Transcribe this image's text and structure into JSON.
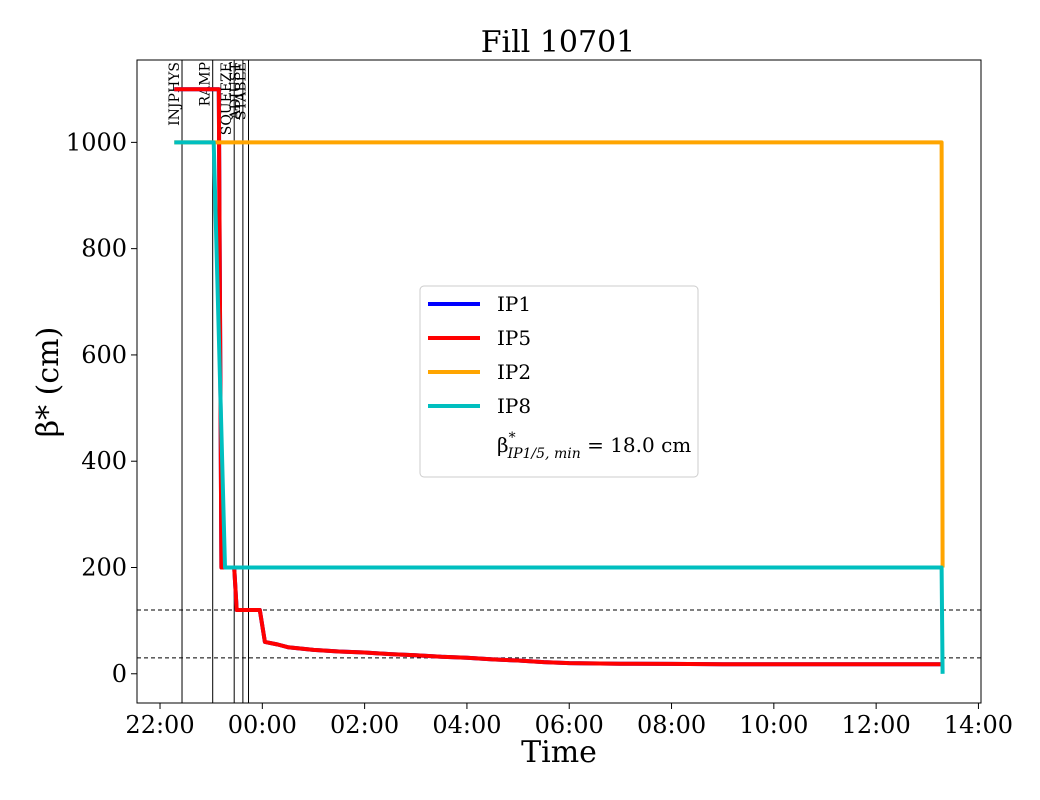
{
  "chart_data": {
    "type": "line",
    "title": "Fill 10701",
    "xlabel": "Time",
    "ylabel": "β* (cm)",
    "x_tick_labels": [
      "22:00",
      "00:00",
      "02:00",
      "04:00",
      "06:00",
      "08:00",
      "10:00",
      "12:00",
      "14:00"
    ],
    "x_ticks_hours": [
      -2,
      0,
      2,
      4,
      6,
      8,
      10,
      12,
      14
    ],
    "xlim_hours": [
      -2.45,
      14.05
    ],
    "y_ticks": [
      0,
      200,
      400,
      600,
      800,
      1000
    ],
    "ylim": [
      -55,
      1155
    ],
    "grid": false,
    "legend_position": "center",
    "legend": {
      "entries": [
        {
          "label": "IP1",
          "color": "#0000ff"
        },
        {
          "label": "IP5",
          "color": "#ff0000"
        },
        {
          "label": "IP2",
          "color": "#ffa500"
        },
        {
          "label": "IP8",
          "color": "#00bfbf"
        }
      ],
      "note_beta": "β",
      "note_sup": "*",
      "note_sub": "IP1/5, min",
      "note_value": " = 18.0 cm"
    },
    "phases": [
      {
        "name": "INJPHYS",
        "x_hours": -1.57
      },
      {
        "name": "RAMP",
        "x_hours": -0.97
      },
      {
        "name": "SQUEEZE",
        "x_hours": -0.55
      },
      {
        "name": "ADJUST",
        "x_hours": -0.38
      },
      {
        "name": "STABLE",
        "x_hours": -0.27
      }
    ],
    "reference_lines": [
      {
        "y": 120,
        "style": "dashed"
      },
      {
        "y": 30,
        "style": "dashed"
      }
    ],
    "series": [
      {
        "name": "IP1",
        "color": "#0000ff",
        "x": [
          -1.72,
          -0.85,
          -0.8,
          -0.55,
          -0.5,
          -0.05,
          0.05,
          0.3,
          0.5,
          1.0,
          1.5,
          2.0,
          2.5,
          3.0,
          3.5,
          4.0,
          4.5,
          5.0,
          5.5,
          6.0,
          7.0,
          8.0,
          9.0,
          10.0,
          11.0,
          12.0,
          13.3
        ],
        "y": [
          1100,
          1100,
          200,
          200,
          120,
          120,
          60,
          55,
          50,
          45,
          42,
          40,
          37,
          35,
          32,
          30,
          27,
          25,
          22,
          20,
          19,
          18.5,
          18,
          18,
          18,
          18,
          18
        ]
      },
      {
        "name": "IP5",
        "color": "#ff0000",
        "x": [
          -1.72,
          -0.85,
          -0.8,
          -0.55,
          -0.5,
          -0.05,
          0.05,
          0.3,
          0.5,
          1.0,
          1.5,
          2.0,
          2.5,
          3.0,
          3.5,
          4.0,
          4.5,
          5.0,
          5.5,
          6.0,
          7.0,
          8.0,
          9.0,
          10.0,
          11.0,
          12.0,
          13.3
        ],
        "y": [
          1100,
          1100,
          200,
          200,
          120,
          120,
          60,
          55,
          50,
          45,
          42,
          40,
          37,
          35,
          32,
          30,
          27,
          25,
          22,
          20,
          19,
          18.5,
          18,
          18,
          18,
          18,
          18
        ]
      },
      {
        "name": "IP2",
        "color": "#ffa500",
        "x": [
          -1.72,
          13.28,
          13.3
        ],
        "y": [
          1000,
          1000,
          200
        ]
      },
      {
        "name": "IP8",
        "color": "#00bfbf",
        "x": [
          -1.72,
          -0.95,
          -0.73,
          13.28,
          13.3
        ],
        "y": [
          1000,
          1000,
          200,
          200,
          0
        ]
      }
    ]
  }
}
